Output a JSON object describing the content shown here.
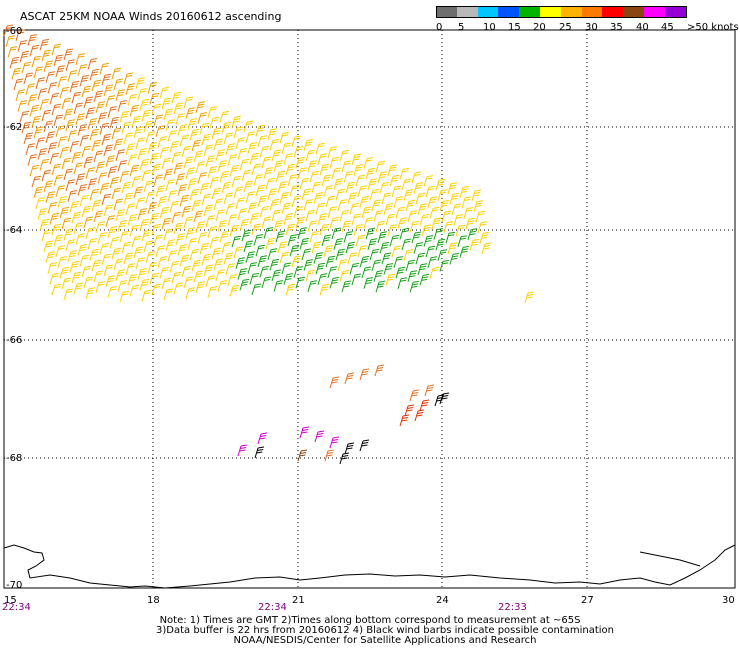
{
  "title": "ASCAT 25KM NOAA Winds 20160612 ascending",
  "colorbar": {
    "colors": [
      "#6e6e6e",
      "#b9b9b9",
      "#00c8ff",
      "#0055ff",
      "#00b400",
      "#ffff00",
      "#ffb400",
      "#ff7a00",
      "#ff0000",
      "#8b4513",
      "#ff00ff",
      "#9400d3"
    ],
    "labels": [
      "0",
      "5",
      "10",
      "15",
      "20",
      "25",
      "30",
      "35",
      "40",
      "45",
      ">50 knots"
    ]
  },
  "lat_labels": [
    "-60",
    "-62",
    "-64",
    "-66",
    "-68",
    "-70"
  ],
  "lon_labels": [
    "15",
    "18",
    "21",
    "24",
    "27",
    "30"
  ],
  "time_labels": [
    "22:34",
    "22:34",
    "22:33"
  ],
  "notes": [
    "Note: 1) Times are GMT 2)Times along bottom correspond to measurement at ~65S",
    "3)Data buffer is 22 hrs from 20160612 4) Black wind barbs indicate possible contamination",
    "NOAA/NESDIS/Center for Satellite Applications and Research"
  ]
}
